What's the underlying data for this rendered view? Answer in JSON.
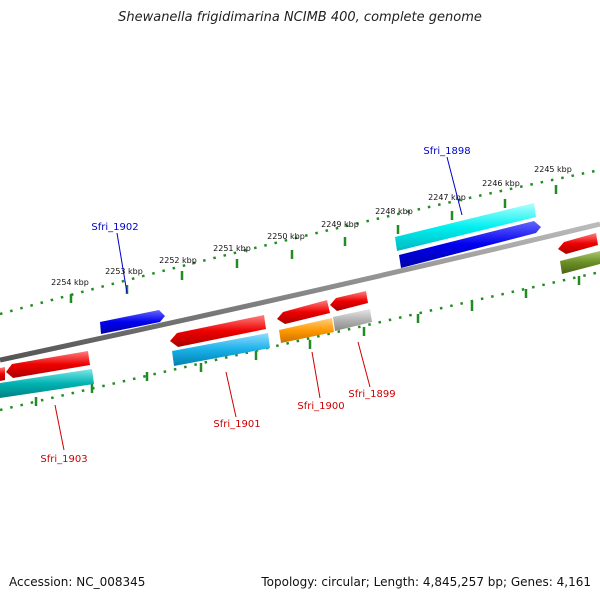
{
  "title": "Shewanella frigidimarina NCIMB 400, complete genome",
  "footer": {
    "accession": "Accession: NC_008345",
    "summary": "Topology: circular; Length: 4,845,257 bp; Genes: 4,161"
  },
  "ruler_ticks": [
    "2254 kbp",
    "2253 kbp",
    "2252 kbp",
    "2251 kbp",
    "2250 kbp",
    "2249 kbp",
    "2248 kbp",
    "2247 kbp",
    "2246 kbp",
    "2245 kbp"
  ],
  "gene_labels": [
    {
      "name": "Sfri_1902",
      "color": "#0000cc"
    },
    {
      "name": "Sfri_1898",
      "color": "#0000cc"
    },
    {
      "name": "Sfri_1903",
      "color": "#cc0000"
    },
    {
      "name": "Sfri_1901",
      "color": "#cc0000"
    },
    {
      "name": "Sfri_1900",
      "color": "#cc0000"
    },
    {
      "name": "Sfri_1899",
      "color": "#cc0000"
    }
  ],
  "colors": {
    "plus_cds": "#0000ee",
    "plus_rna": "#00e5ee",
    "minus_cds": "#ee0000",
    "minus_rna_a": "#00b3b3",
    "minus_rna_b": "#1ab0e8",
    "orange_feature": "#ff9900",
    "gray_feature": "#b3b3b3",
    "olive_feature": "#6b8e23",
    "backbone": "#888888",
    "tick_green": "#228b22"
  }
}
